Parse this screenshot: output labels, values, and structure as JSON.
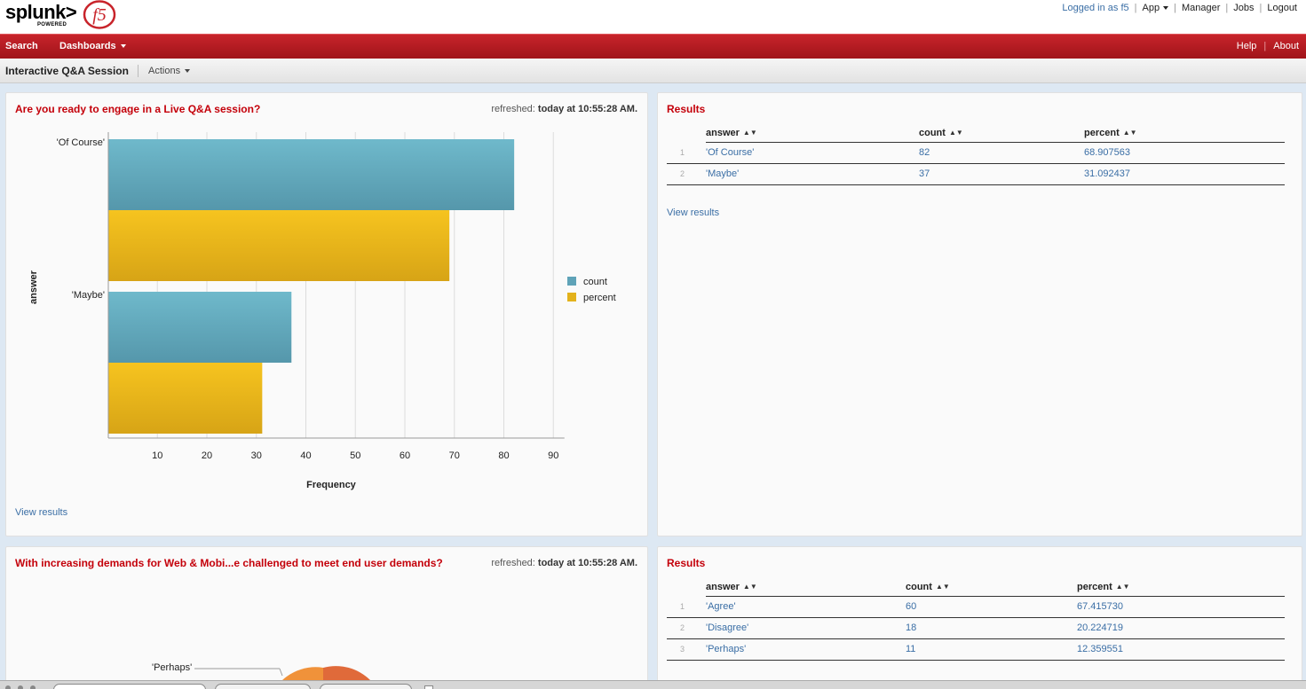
{
  "header": {
    "logo_text": "splunk>",
    "logo_sub": "POWERED",
    "partner_logo": "f5",
    "logged_in": "Logged in as f5",
    "app_menu": "App",
    "manager": "Manager",
    "jobs": "Jobs",
    "logout": "Logout"
  },
  "nav": {
    "search": "Search",
    "dashboards": "Dashboards",
    "help": "Help",
    "about": "About"
  },
  "subheader": {
    "title": "Interactive Q&A Session",
    "actions": "Actions"
  },
  "panel1": {
    "title": "Are you ready to engage in a Live Q&A session?",
    "refreshed_label": "refreshed:",
    "refreshed_value": "today at 10:55:28 AM.",
    "view_results": "View results"
  },
  "panel3": {
    "title": "With increasing demands for Web & Mobi...e challenged to meet end user demands?",
    "refreshed_label": "refreshed:",
    "refreshed_value": "today at 10:55:28 AM.",
    "pie_label": "'Perhaps'"
  },
  "results1": {
    "title": "Results",
    "columns": [
      "answer",
      "count",
      "percent"
    ],
    "rows": [
      [
        "1",
        "'Of Course'",
        "82",
        "68.907563"
      ],
      [
        "2",
        "'Maybe'",
        "37",
        "31.092437"
      ]
    ],
    "view_results": "View results"
  },
  "results2": {
    "title": "Results",
    "columns": [
      "answer",
      "count",
      "percent"
    ],
    "rows": [
      [
        "1",
        "'Agree'",
        "60",
        "67.415730"
      ],
      [
        "2",
        "'Disagree'",
        "18",
        "20.224719"
      ],
      [
        "3",
        "'Perhaps'",
        "11",
        "12.359551"
      ]
    ]
  },
  "chart_data": {
    "type": "bar",
    "orientation": "horizontal",
    "categories": [
      "'Of Course'",
      "'Maybe'"
    ],
    "series": [
      {
        "name": "count",
        "values": [
          82,
          37
        ],
        "color": "#5fa3b8"
      },
      {
        "name": "percent",
        "values": [
          68.907563,
          31.092437
        ],
        "color": "#e3b21c"
      }
    ],
    "xlabel": "Frequency",
    "ylabel": "answer",
    "xticks": [
      10,
      20,
      30,
      40,
      50,
      60,
      70,
      80,
      90
    ],
    "xlim": [
      0,
      90
    ],
    "grid": true,
    "legend": "right"
  },
  "colors": {
    "accent_red": "#c4000a",
    "nav_red": "#b01b21",
    "link_blue": "#3a6ea5"
  }
}
